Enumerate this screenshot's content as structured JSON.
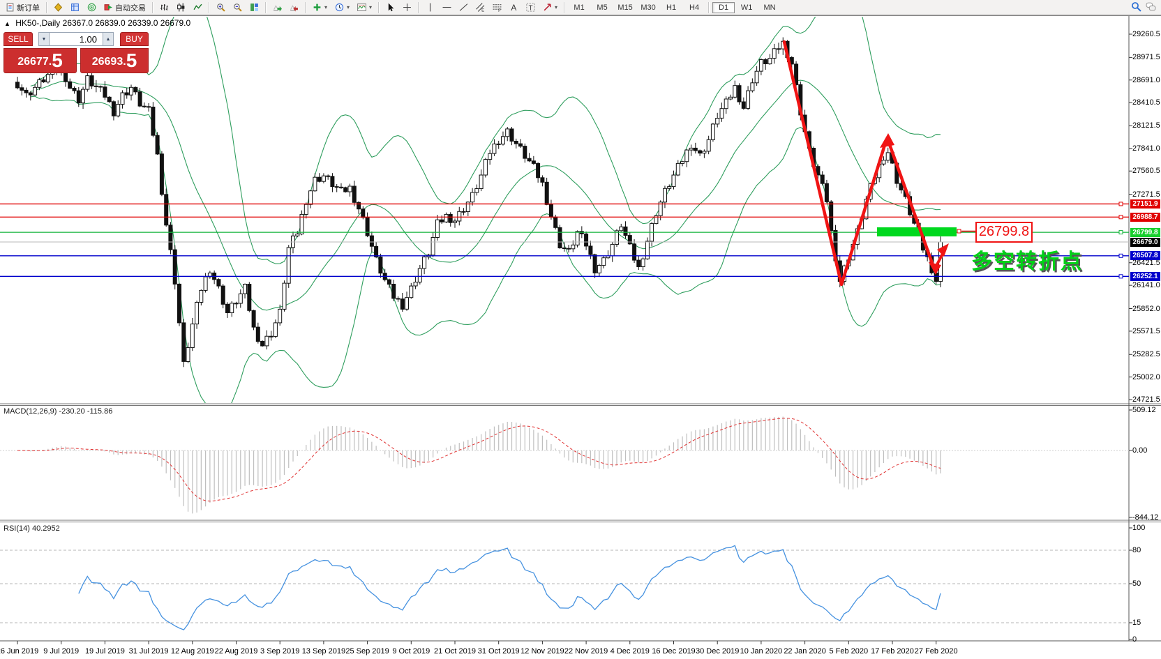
{
  "toolbar": {
    "new_order_label": "新订单",
    "autotrade_label": "自动交易",
    "groups": [
      [
        {
          "name": "new-order",
          "icon": "doc",
          "label_key": "new_order_label"
        }
      ],
      [
        {
          "name": "market-watch",
          "icon": "diamond"
        },
        {
          "name": "navigator",
          "icon": "gridblue"
        },
        {
          "name": "terminal",
          "icon": "sonar"
        },
        {
          "name": "auto-trading",
          "icon": "play",
          "label_key": "autotrade_label"
        }
      ],
      [
        {
          "name": "chart-bars",
          "icon": "bars"
        },
        {
          "name": "chart-candles",
          "icon": "candles"
        },
        {
          "name": "chart-line",
          "icon": "line"
        }
      ],
      [
        {
          "name": "zoom-in",
          "icon": "zoomin"
        },
        {
          "name": "zoom-out",
          "icon": "zoomout"
        },
        {
          "name": "tile-windows",
          "icon": "tiles"
        }
      ],
      [
        {
          "name": "auto-scroll",
          "icon": "scroll"
        },
        {
          "name": "chart-shift",
          "icon": "shift"
        }
      ],
      [
        {
          "name": "indicators",
          "icon": "plusgreen",
          "dropdown": true
        },
        {
          "name": "periods",
          "icon": "clock",
          "dropdown": true
        },
        {
          "name": "templates",
          "icon": "template",
          "dropdown": true
        }
      ],
      [
        {
          "name": "cursor",
          "icon": "cursor"
        },
        {
          "name": "crosshair",
          "icon": "cross"
        }
      ],
      [
        {
          "name": "vertical-line",
          "icon": "vline"
        },
        {
          "name": "horizontal-line",
          "icon": "hline"
        },
        {
          "name": "trendline",
          "icon": "tline"
        },
        {
          "name": "equidistant-channel",
          "icon": "channel"
        },
        {
          "name": "fibonacci",
          "icon": "fibo"
        },
        {
          "name": "text",
          "icon": "textA"
        },
        {
          "name": "text-label",
          "icon": "labelT"
        },
        {
          "name": "arrows",
          "icon": "arrows",
          "dropdown": true
        }
      ]
    ],
    "timeframes": [
      "M1",
      "M5",
      "M15",
      "M30",
      "H1",
      "H4",
      "D1",
      "W1",
      "MN"
    ],
    "active_timeframe": "D1"
  },
  "header": {
    "collapse_icon": "▲",
    "symbol_tf": "HK50-,Daily",
    "ohlc": "26367.0 26839.0 26339.0 26679.0"
  },
  "trade_panel": {
    "sell_label": "SELL",
    "buy_label": "BUY",
    "volume": "1.00",
    "down_glyph": "▼",
    "up_glyph": "▲",
    "sell_price": "26677",
    "sell_frac": "5",
    "buy_price": "26693",
    "buy_frac": "5",
    "dot": "."
  },
  "indicators": {
    "macd_label": "MACD(12,26,9) -230.20 -115.86",
    "rsi_label": "RSI(14) 40.2952"
  },
  "annotations": {
    "price_box": "26799.8",
    "turning_point_text": "多空转折点",
    "highlight_color": "#00d81e",
    "arrow_color": "#f01414"
  },
  "chart_data": {
    "type": "candlestick",
    "symbol": "HK50-",
    "timeframe": "Daily",
    "ohlc_display": {
      "open": 26367.0,
      "high": 26839.0,
      "low": 26339.0,
      "close": 26679.0
    },
    "bid": 26677.5,
    "ask": 26693.5,
    "price_axis_ticks": [
      29260.5,
      28971.5,
      28691.0,
      28410.5,
      28121.5,
      27841.0,
      27560.5,
      27271.5,
      26421.5,
      26141.0,
      25852.0,
      25571.5,
      25282.5,
      25002.0,
      24721.5
    ],
    "level_lines": [
      {
        "price": 27151.9,
        "color": "#e00000"
      },
      {
        "price": 26988.7,
        "color": "#e00000"
      },
      {
        "price": 26799.8,
        "color": "#12b33a",
        "chip": "#18cf2e"
      },
      {
        "price": 26507.8,
        "color": "#0000cc"
      },
      {
        "price": 26252.1,
        "color": "#0000cc"
      }
    ],
    "current_price": {
      "price": 26679.0,
      "chip": "#000000",
      "line": "#b8b8b8"
    },
    "date_labels": [
      "26 Jun 2019",
      "9 Jul 2019",
      "19 Jul 2019",
      "31 Jul 2019",
      "12 Aug 2019",
      "22 Aug 2019",
      "3 Sep 2019",
      "13 Sep 2019",
      "25 Sep 2019",
      "9 Oct 2019",
      "21 Oct 2019",
      "31 Oct 2019",
      "12 Nov 2019",
      "22 Nov 2019",
      "4 Dec 2019",
      "16 Dec 2019",
      "30 Dec 2019",
      "10 Jan 2020",
      "22 Jan 2020",
      "5 Feb 2020",
      "17 Feb 2020",
      "27 Feb 2020"
    ],
    "candle_count": 212,
    "close_waypoints": [
      [
        0,
        28650
      ],
      [
        2,
        28500
      ],
      [
        4,
        28600
      ],
      [
        7,
        28750
      ],
      [
        10,
        28850
      ],
      [
        12,
        28600
      ],
      [
        14,
        28450
      ],
      [
        16,
        28700
      ],
      [
        18,
        28600
      ],
      [
        20,
        28500
      ],
      [
        22,
        28300
      ],
      [
        24,
        28500
      ],
      [
        26,
        28600
      ],
      [
        28,
        28400
      ],
      [
        30,
        28300
      ],
      [
        32,
        27750
      ],
      [
        34,
        26900
      ],
      [
        36,
        26200
      ],
      [
        38,
        25150
      ],
      [
        40,
        25650
      ],
      [
        42,
        26100
      ],
      [
        44,
        26350
      ],
      [
        46,
        26100
      ],
      [
        48,
        25800
      ],
      [
        50,
        25950
      ],
      [
        52,
        26100
      ],
      [
        54,
        25600
      ],
      [
        56,
        25400
      ],
      [
        58,
        25550
      ],
      [
        60,
        25800
      ],
      [
        62,
        26600
      ],
      [
        64,
        26800
      ],
      [
        66,
        27200
      ],
      [
        68,
        27450
      ],
      [
        70,
        27500
      ],
      [
        72,
        27400
      ],
      [
        74,
        27300
      ],
      [
        76,
        27350
      ],
      [
        78,
        27100
      ],
      [
        80,
        26800
      ],
      [
        82,
        26450
      ],
      [
        84,
        26200
      ],
      [
        86,
        26000
      ],
      [
        88,
        25900
      ],
      [
        90,
        26100
      ],
      [
        92,
        26350
      ],
      [
        94,
        26550
      ],
      [
        96,
        26900
      ],
      [
        98,
        27000
      ],
      [
        100,
        26950
      ],
      [
        102,
        27100
      ],
      [
        104,
        27250
      ],
      [
        106,
        27500
      ],
      [
        108,
        27800
      ],
      [
        110,
        27950
      ],
      [
        112,
        28050
      ],
      [
        114,
        27900
      ],
      [
        116,
        27750
      ],
      [
        118,
        27600
      ],
      [
        120,
        27400
      ],
      [
        122,
        27000
      ],
      [
        124,
        26650
      ],
      [
        126,
        26550
      ],
      [
        128,
        26800
      ],
      [
        130,
        26650
      ],
      [
        132,
        26350
      ],
      [
        134,
        26450
      ],
      [
        136,
        26650
      ],
      [
        138,
        26900
      ],
      [
        140,
        26600
      ],
      [
        142,
        26350
      ],
      [
        144,
        26700
      ],
      [
        146,
        27050
      ],
      [
        148,
        27300
      ],
      [
        150,
        27500
      ],
      [
        152,
        27700
      ],
      [
        154,
        27900
      ],
      [
        156,
        27750
      ],
      [
        158,
        27950
      ],
      [
        160,
        28250
      ],
      [
        162,
        28400
      ],
      [
        164,
        28600
      ],
      [
        166,
        28350
      ],
      [
        168,
        28700
      ],
      [
        170,
        28900
      ],
      [
        172,
        28950
      ],
      [
        174,
        29100
      ],
      [
        175,
        29150
      ],
      [
        177,
        28900
      ],
      [
        179,
        28300
      ],
      [
        181,
        27800
      ],
      [
        183,
        27500
      ],
      [
        185,
        27200
      ],
      [
        186,
        26800
      ],
      [
        188,
        26200
      ],
      [
        190,
        26500
      ],
      [
        192,
        26800
      ],
      [
        194,
        27200
      ],
      [
        196,
        27500
      ],
      [
        198,
        27750
      ],
      [
        199,
        27800
      ],
      [
        201,
        27450
      ],
      [
        203,
        27200
      ],
      [
        205,
        26900
      ],
      [
        207,
        26600
      ],
      [
        209,
        26350
      ],
      [
        210,
        26200
      ],
      [
        211,
        26679
      ]
    ],
    "bollinger": {
      "period": 20,
      "deviation": 2,
      "color": "#2f9e5e"
    },
    "macd": {
      "fast": 12,
      "slow": 26,
      "signal": 9,
      "hist_color": "#bfbfbf",
      "signal_color": "#e03030",
      "scale_labels": [
        {
          "t": "509.12",
          "v": 509.12
        },
        {
          "t": "0.00",
          "v": 0
        },
        {
          "t": "-844.12",
          "v": -844.12
        }
      ]
    },
    "rsi": {
      "period": 14,
      "value": 40.2952,
      "color": "#4692e0",
      "levels": [
        80,
        50,
        15
      ],
      "scale_labels": [
        {
          "t": "100",
          "v": 100
        },
        {
          "t": "80",
          "v": 80
        },
        {
          "t": "50",
          "v": 50
        },
        {
          "t": "15",
          "v": 15
        },
        {
          "t": "0",
          "v": 0
        }
      ]
    }
  }
}
